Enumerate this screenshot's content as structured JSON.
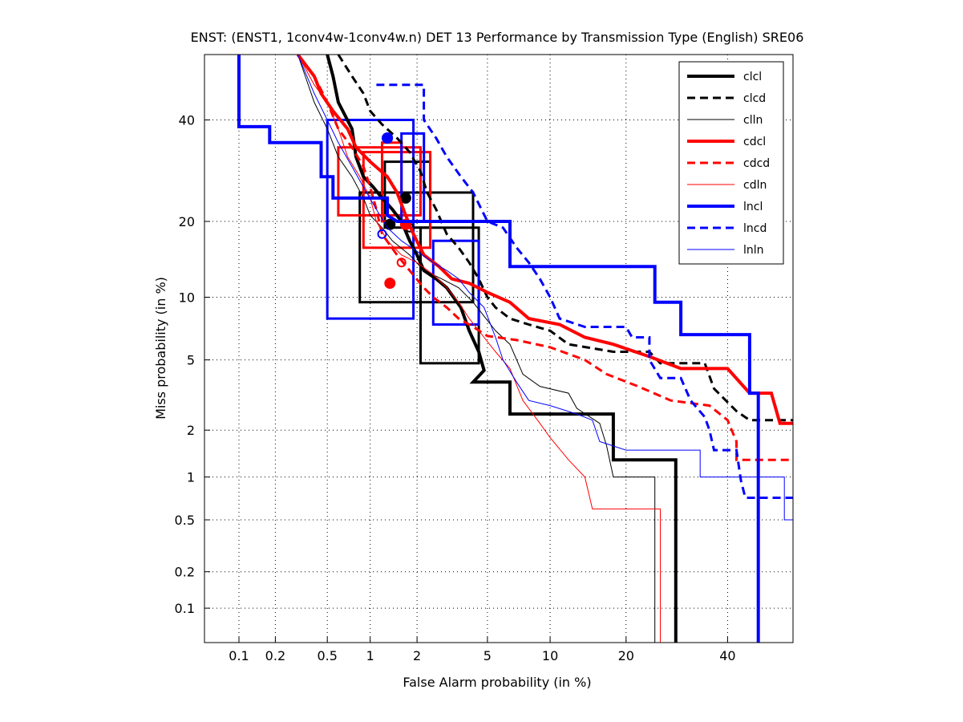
{
  "chart_data": {
    "type": "line",
    "title": "ENST: (ENST1, 1conv4w-1conv4w.n) DET 13 Performance by Transmission Type (English) SRE06",
    "xlabel": "False Alarm probability (in %)",
    "ylabel": "Miss probability (in %)",
    "x_scale": "probit",
    "y_scale": "probit",
    "xlim": [
      0.05,
      55
    ],
    "ylim": [
      0.05,
      55
    ],
    "x_ticks": [
      {
        "v": 0.1,
        "label": "0.1"
      },
      {
        "v": 0.2,
        "label": "0.2"
      },
      {
        "v": 0.5,
        "label": "0.5"
      },
      {
        "v": 1,
        "label": "1"
      },
      {
        "v": 2,
        "label": "2"
      },
      {
        "v": 5,
        "label": "5"
      },
      {
        "v": 10,
        "label": "10"
      },
      {
        "v": 20,
        "label": "20"
      },
      {
        "v": 40,
        "label": "40"
      }
    ],
    "y_ticks": [
      {
        "v": 0.1,
        "label": "0.1"
      },
      {
        "v": 0.2,
        "label": "0.2"
      },
      {
        "v": 0.5,
        "label": "0.5"
      },
      {
        "v": 1,
        "label": "1"
      },
      {
        "v": 2,
        "label": "2"
      },
      {
        "v": 5,
        "label": "5"
      },
      {
        "v": 10,
        "label": "10"
      },
      {
        "v": 20,
        "label": "20"
      },
      {
        "v": 40,
        "label": "40"
      }
    ],
    "grid": true,
    "legend_position": "top-right",
    "series": [
      {
        "name": "clcl",
        "color": "#000000",
        "width": 4,
        "dash": "solid",
        "points": [
          [
            0.5,
            55
          ],
          [
            0.55,
            50
          ],
          [
            0.6,
            44
          ],
          [
            0.75,
            38
          ],
          [
            0.8,
            32
          ],
          [
            0.9,
            28
          ],
          [
            1.05,
            26
          ],
          [
            1.2,
            24
          ],
          [
            1.4,
            22
          ],
          [
            1.6,
            20
          ],
          [
            1.8,
            17
          ],
          [
            2.0,
            15
          ],
          [
            2.2,
            13
          ],
          [
            2.6,
            12
          ],
          [
            3.0,
            11
          ],
          [
            3.6,
            9
          ],
          [
            4.0,
            7
          ],
          [
            4.5,
            5.5
          ],
          [
            4.8,
            4.4
          ],
          [
            4.2,
            3.8
          ],
          [
            6.5,
            3.8
          ],
          [
            6.5,
            2.5
          ],
          [
            18,
            2.5
          ],
          [
            18,
            1.3
          ],
          [
            29,
            1.3
          ],
          [
            29,
            0.05
          ]
        ],
        "marker": {
          "x": 1.7,
          "y": 24
        }
      },
      {
        "name": "clcd",
        "color": "#000000",
        "width": 3,
        "dash": "10,6",
        "points": [
          [
            0.6,
            55
          ],
          [
            0.75,
            50
          ],
          [
            0.9,
            46
          ],
          [
            1.0,
            42
          ],
          [
            1.2,
            39
          ],
          [
            1.5,
            36
          ],
          [
            1.8,
            33
          ],
          [
            2.1,
            29
          ],
          [
            2.3,
            25
          ],
          [
            2.6,
            22
          ],
          [
            3.0,
            18
          ],
          [
            3.5,
            16
          ],
          [
            4.0,
            14
          ],
          [
            4.5,
            12
          ],
          [
            5.0,
            10
          ],
          [
            5.5,
            9
          ],
          [
            6.5,
            8
          ],
          [
            8,
            7.5
          ],
          [
            10,
            7
          ],
          [
            12,
            6
          ],
          [
            18,
            5.5
          ],
          [
            24,
            5.5
          ],
          [
            26,
            4.8
          ],
          [
            35,
            4.8
          ],
          [
            37,
            3.5
          ],
          [
            42,
            2.6
          ],
          [
            45,
            2.3
          ],
          [
            55,
            2.3
          ]
        ],
        "marker": {
          "x": 1.35,
          "y": 19.5
        }
      },
      {
        "name": "clln",
        "color": "#000000",
        "width": 1,
        "dash": "solid",
        "points": [
          [
            0.2,
            55
          ],
          [
            0.3,
            55
          ],
          [
            0.4,
            44
          ],
          [
            0.5,
            38
          ],
          [
            0.6,
            32
          ],
          [
            0.75,
            28
          ],
          [
            0.9,
            24
          ],
          [
            1.0,
            21
          ],
          [
            1.2,
            19
          ],
          [
            1.4,
            17
          ],
          [
            1.8,
            15
          ],
          [
            2.2,
            13
          ],
          [
            2.8,
            12
          ],
          [
            3.5,
            11
          ],
          [
            4.2,
            9.5
          ],
          [
            5.5,
            7
          ],
          [
            6.5,
            6
          ],
          [
            7.5,
            4.2
          ],
          [
            9,
            3.6
          ],
          [
            12,
            3.3
          ],
          [
            13,
            2.7
          ],
          [
            16,
            2.2
          ],
          [
            17,
            1.6
          ],
          [
            18,
            1.0
          ],
          [
            25,
            1.0
          ],
          [
            25,
            0.05
          ]
        ],
        "marker": {
          "x": 1.8,
          "y": 19
        }
      },
      {
        "name": "cdcl",
        "color": "#ff0000",
        "width": 4,
        "dash": "solid",
        "points": [
          [
            0.3,
            55
          ],
          [
            0.4,
            50
          ],
          [
            0.45,
            46
          ],
          [
            0.55,
            42
          ],
          [
            0.7,
            38
          ],
          [
            0.8,
            34
          ],
          [
            1.0,
            31
          ],
          [
            1.3,
            28
          ],
          [
            1.5,
            25
          ],
          [
            1.7,
            21
          ],
          [
            1.9,
            18
          ],
          [
            2.2,
            15
          ],
          [
            2.7,
            13.5
          ],
          [
            3.2,
            12
          ],
          [
            4.0,
            11.5
          ],
          [
            5.0,
            10.5
          ],
          [
            6.5,
            9.5
          ],
          [
            8,
            8
          ],
          [
            11,
            7.5
          ],
          [
            14,
            6.5
          ],
          [
            18,
            6
          ],
          [
            24,
            5.2
          ],
          [
            30,
            4.5
          ],
          [
            40,
            4.5
          ],
          [
            45,
            3.3
          ],
          [
            50,
            3.3
          ],
          [
            52,
            2.2
          ],
          [
            55,
            2.2
          ]
        ],
        "marker": {
          "x": 1.7,
          "y": 19.5
        }
      },
      {
        "name": "cdcd",
        "color": "#ff0000",
        "width": 3,
        "dash": "10,6",
        "points": [
          [
            0.3,
            55
          ],
          [
            0.4,
            50
          ],
          [
            0.5,
            44
          ],
          [
            0.6,
            38
          ],
          [
            0.75,
            34
          ],
          [
            0.9,
            30
          ],
          [
            1.0,
            26
          ],
          [
            1.1,
            22
          ],
          [
            1.2,
            18
          ],
          [
            1.5,
            15
          ],
          [
            1.8,
            13
          ],
          [
            2.2,
            11
          ],
          [
            2.5,
            10
          ],
          [
            3.0,
            9
          ],
          [
            3.5,
            8
          ],
          [
            4.2,
            7.3
          ],
          [
            5.0,
            6.6
          ],
          [
            7,
            6.3
          ],
          [
            10,
            5.8
          ],
          [
            14,
            5.0
          ],
          [
            17,
            4.2
          ],
          [
            22,
            3.6
          ],
          [
            28,
            3.0
          ],
          [
            36,
            2.8
          ],
          [
            40,
            2.3
          ],
          [
            42,
            1.7
          ],
          [
            42,
            1.3
          ],
          [
            55,
            1.3
          ]
        ],
        "marker": {
          "x": 1.35,
          "y": 11.5
        }
      },
      {
        "name": "cdln",
        "color": "#ff0000",
        "width": 1,
        "dash": "solid",
        "points": [
          [
            0.3,
            55
          ],
          [
            0.4,
            48
          ],
          [
            0.5,
            44
          ],
          [
            0.6,
            38
          ],
          [
            0.7,
            32
          ],
          [
            0.85,
            28
          ],
          [
            1.0,
            24
          ],
          [
            1.1,
            20
          ],
          [
            1.3,
            17
          ],
          [
            1.6,
            15
          ],
          [
            2.0,
            14
          ],
          [
            2.5,
            12.5
          ],
          [
            3.0,
            11
          ],
          [
            3.5,
            9.5
          ],
          [
            4.0,
            8
          ],
          [
            4.8,
            6.5
          ],
          [
            5.5,
            5.5
          ],
          [
            6.5,
            4.5
          ],
          [
            7.5,
            3.0
          ],
          [
            9,
            2.2
          ],
          [
            10,
            1.8
          ],
          [
            12,
            1.3
          ],
          [
            14,
            1.0
          ],
          [
            15,
            0.6
          ],
          [
            26,
            0.6
          ],
          [
            26,
            0.05
          ]
        ],
        "marker": {
          "x": 1.6,
          "y": 14
        }
      },
      {
        "name": "lncl",
        "color": "#0000ff",
        "width": 4,
        "dash": "solid",
        "points": [
          [
            0.1,
            55
          ],
          [
            0.1,
            38.5
          ],
          [
            0.18,
            38.5
          ],
          [
            0.18,
            35
          ],
          [
            0.45,
            35
          ],
          [
            0.45,
            28
          ],
          [
            0.55,
            28
          ],
          [
            0.55,
            24
          ],
          [
            1.3,
            24
          ],
          [
            1.3,
            21
          ],
          [
            1.5,
            20
          ],
          [
            6.5,
            20
          ],
          [
            6.5,
            13.5
          ],
          [
            25,
            13.5
          ],
          [
            25,
            9.5
          ],
          [
            30,
            9.5
          ],
          [
            30,
            6.7
          ],
          [
            45,
            6.7
          ],
          [
            45,
            3.3
          ],
          [
            47,
            3.3
          ],
          [
            47,
            0.05
          ]
        ],
        "marker": {
          "x": 1.3,
          "y": 36
        }
      },
      {
        "name": "lncd",
        "color": "#0000ff",
        "width": 3,
        "dash": "10,6",
        "points": [
          [
            1.1,
            48
          ],
          [
            2.2,
            48
          ],
          [
            2.2,
            40
          ],
          [
            2.6,
            36
          ],
          [
            3.0,
            32
          ],
          [
            3.6,
            28
          ],
          [
            4.2,
            25
          ],
          [
            5.0,
            20
          ],
          [
            6.0,
            19
          ],
          [
            7,
            16
          ],
          [
            8,
            14
          ],
          [
            9,
            12
          ],
          [
            10,
            10
          ],
          [
            11,
            8
          ],
          [
            14,
            7.3
          ],
          [
            20,
            7.3
          ],
          [
            21,
            6.5
          ],
          [
            24,
            6.5
          ],
          [
            24,
            5.0
          ],
          [
            26,
            4.0
          ],
          [
            30,
            4.0
          ],
          [
            32,
            3.0
          ],
          [
            35,
            2.4
          ],
          [
            36,
            2.0
          ],
          [
            37,
            1.5
          ],
          [
            42,
            1.5
          ],
          [
            43,
            0.95
          ],
          [
            44,
            0.72
          ],
          [
            55,
            0.72
          ]
        ],
        "marker": {
          "x": 1.3,
          "y": 36
        }
      },
      {
        "name": "lnln",
        "color": "#0000ff",
        "width": 1,
        "dash": "solid",
        "points": [
          [
            0.3,
            55
          ],
          [
            0.4,
            46
          ],
          [
            0.5,
            40
          ],
          [
            0.6,
            35
          ],
          [
            0.75,
            30
          ],
          [
            0.9,
            26
          ],
          [
            1.1,
            22
          ],
          [
            1.3,
            19
          ],
          [
            1.6,
            17
          ],
          [
            2.0,
            15.5
          ],
          [
            2.5,
            14
          ],
          [
            3.0,
            13
          ],
          [
            3.5,
            12
          ],
          [
            4.0,
            10.5
          ],
          [
            4.8,
            9
          ],
          [
            5.5,
            6.5
          ],
          [
            6.0,
            5.0
          ],
          [
            7,
            3.8
          ],
          [
            8,
            3.0
          ],
          [
            10,
            2.8
          ],
          [
            13,
            2.5
          ],
          [
            15,
            2.3
          ],
          [
            16,
            1.7
          ],
          [
            20,
            1.5
          ],
          [
            34,
            1.5
          ],
          [
            34,
            1.0
          ],
          [
            53,
            1.0
          ],
          [
            53,
            0.5
          ],
          [
            55,
            0.5
          ]
        ],
        "marker": {
          "x": 1.2,
          "y": 18
        }
      }
    ],
    "boxes": [
      {
        "series": "clcl",
        "x1": 0.85,
        "x2": 4.2,
        "y1": 9.5,
        "y2": 25
      },
      {
        "series": "clcd",
        "x1": 1.25,
        "x2": 2.4,
        "y1": 19,
        "y2": 31
      },
      {
        "series": "clln",
        "x1": 2.1,
        "x2": 4.5,
        "y1": 4.8,
        "y2": 19
      },
      {
        "series": "cdcl",
        "x1": 0.6,
        "x2": 2.1,
        "y1": 21,
        "y2": 34
      },
      {
        "series": "cdcl",
        "x1": 0.9,
        "x2": 2.4,
        "y1": 16,
        "y2": 33
      },
      {
        "series": "cdcd",
        "x1": 1.2,
        "x2": 1.6,
        "y1": 20,
        "y2": 35
      },
      {
        "series": "lncl",
        "x1": 0.5,
        "x2": 1.9,
        "y1": 8,
        "y2": 40
      },
      {
        "series": "lncd",
        "x1": 1.6,
        "x2": 2.2,
        "y1": 20,
        "y2": 37
      },
      {
        "series": "lnln",
        "x1": 2.5,
        "x2": 4.5,
        "y1": 7.5,
        "y2": 17
      }
    ]
  }
}
